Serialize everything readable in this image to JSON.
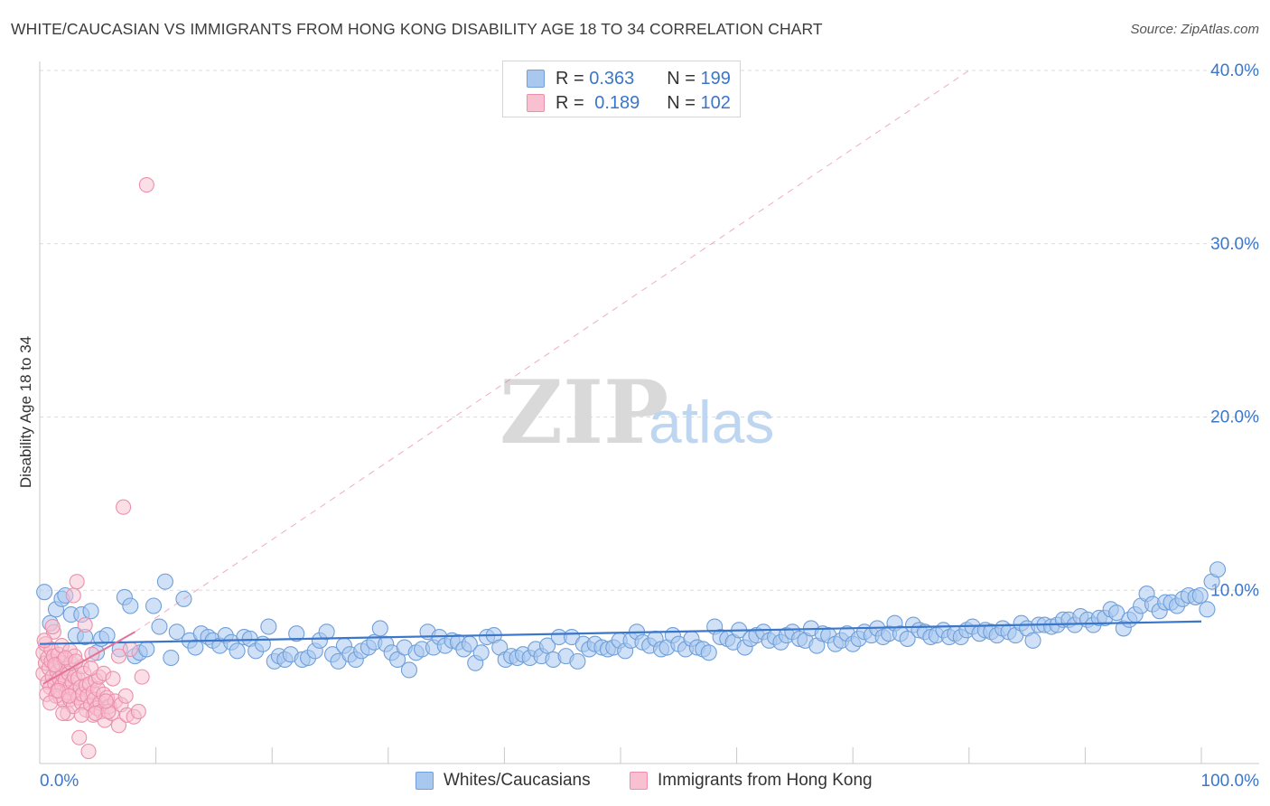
{
  "title": "WHITE/CAUCASIAN VS IMMIGRANTS FROM HONG KONG DISABILITY AGE 18 TO 34 CORRELATION CHART",
  "source": "Source: ZipAtlas.com",
  "watermark": {
    "zip": "ZIP",
    "atlas": "atlas"
  },
  "legend": {
    "rows": [
      {
        "r_label": "R = ",
        "r_value": "0.363",
        "n_label": "N = ",
        "n_value": "199",
        "color": "#a9c8f0",
        "border": "#6f9fd8"
      },
      {
        "r_label": "R = ",
        "r_value": "0.189",
        "n_label": "N = ",
        "n_value": "102",
        "color": "#f8c0d0",
        "border": "#ec8fab"
      }
    ]
  },
  "bottom_legend": [
    {
      "label": "Whites/Caucasians",
      "color": "#a9c8f0",
      "border": "#6f9fd8"
    },
    {
      "label": "Immigrants from Hong Kong",
      "color": "#f8c0d0",
      "border": "#ec8fab"
    }
  ],
  "chart_data": {
    "type": "scatter",
    "title": "WHITE/CAUCASIAN VS IMMIGRANTS FROM HONG KONG DISABILITY AGE 18 TO 34 CORRELATION CHART",
    "xlabel": "",
    "ylabel": "Disability Age 18 to 34",
    "xlim": [
      0,
      100
    ],
    "ylim": [
      0,
      40
    ],
    "x_tick_labels": [
      "0.0%",
      "100.0%"
    ],
    "y_ticks": [
      10,
      20,
      30,
      40
    ],
    "y_tick_labels": [
      "10.0%",
      "20.0%",
      "30.0%",
      "40.0%"
    ],
    "grid": "horizontal dashed",
    "legend_position": "top-center",
    "colors": {
      "blue": "#6f9fd8",
      "blue_fill": "#a9c8f0",
      "blue_line": "#3a76c9",
      "pink": "#ec8fab",
      "pink_fill": "#f8c0d0",
      "pink_line": "#e4739a"
    },
    "series": [
      {
        "name": "Whites/Caucasians",
        "r": 0.363,
        "n": 199,
        "trend": {
          "x": [
            0,
            100
          ],
          "y": [
            6.9,
            8.2
          ]
        },
        "points": [
          [
            0.4,
            9.9
          ],
          [
            0.9,
            8.1
          ],
          [
            1.4,
            8.9
          ],
          [
            1.9,
            9.5
          ],
          [
            2.2,
            9.7
          ],
          [
            2.7,
            8.6
          ],
          [
            3.1,
            7.4
          ],
          [
            3.6,
            8.6
          ],
          [
            3.9,
            7.3
          ],
          [
            4.4,
            8.8
          ],
          [
            4.9,
            6.4
          ],
          [
            5.3,
            7.2
          ],
          [
            5.8,
            7.4
          ],
          [
            6.9,
            6.6
          ],
          [
            7.3,
            9.6
          ],
          [
            7.8,
            9.1
          ],
          [
            8.2,
            6.2
          ],
          [
            8.6,
            6.4
          ],
          [
            9.2,
            6.6
          ],
          [
            9.8,
            9.1
          ],
          [
            10.3,
            7.9
          ],
          [
            10.8,
            10.5
          ],
          [
            11.3,
            6.1
          ],
          [
            11.8,
            7.6
          ],
          [
            12.4,
            9.5
          ],
          [
            12.9,
            7.1
          ],
          [
            13.4,
            6.7
          ],
          [
            13.9,
            7.5
          ],
          [
            14.5,
            7.3
          ],
          [
            14.9,
            7.1
          ],
          [
            15.5,
            6.8
          ],
          [
            16.0,
            7.4
          ],
          [
            16.5,
            7.0
          ],
          [
            17.0,
            6.5
          ],
          [
            17.6,
            7.3
          ],
          [
            18.1,
            7.2
          ],
          [
            18.6,
            6.5
          ],
          [
            19.2,
            6.9
          ],
          [
            19.7,
            7.9
          ],
          [
            20.2,
            5.9
          ],
          [
            20.6,
            6.2
          ],
          [
            21.1,
            6.0
          ],
          [
            21.6,
            6.3
          ],
          [
            22.1,
            7.5
          ],
          [
            22.6,
            6.0
          ],
          [
            23.1,
            6.1
          ],
          [
            23.7,
            6.5
          ],
          [
            24.1,
            7.1
          ],
          [
            24.7,
            7.6
          ],
          [
            25.2,
            6.3
          ],
          [
            25.7,
            5.9
          ],
          [
            26.2,
            6.8
          ],
          [
            26.7,
            6.3
          ],
          [
            27.2,
            6.0
          ],
          [
            27.7,
            6.5
          ],
          [
            28.3,
            6.7
          ],
          [
            28.8,
            7.0
          ],
          [
            29.3,
            7.8
          ],
          [
            29.8,
            6.9
          ],
          [
            30.3,
            6.4
          ],
          [
            30.8,
            6.0
          ],
          [
            31.4,
            6.7
          ],
          [
            31.8,
            5.4
          ],
          [
            32.4,
            6.4
          ],
          [
            32.9,
            6.6
          ],
          [
            33.4,
            7.6
          ],
          [
            33.9,
            6.7
          ],
          [
            34.4,
            7.3
          ],
          [
            34.9,
            6.8
          ],
          [
            35.5,
            7.1
          ],
          [
            36.0,
            7.0
          ],
          [
            36.5,
            6.6
          ],
          [
            37.0,
            6.9
          ],
          [
            37.5,
            5.8
          ],
          [
            38.0,
            6.4
          ],
          [
            38.5,
            7.3
          ],
          [
            39.1,
            7.4
          ],
          [
            39.6,
            6.7
          ],
          [
            40.1,
            6.0
          ],
          [
            40.6,
            6.2
          ],
          [
            41.1,
            6.1
          ],
          [
            41.6,
            6.3
          ],
          [
            42.2,
            6.1
          ],
          [
            42.7,
            6.6
          ],
          [
            43.2,
            6.2
          ],
          [
            43.7,
            6.8
          ],
          [
            44.2,
            6.0
          ],
          [
            44.7,
            7.3
          ],
          [
            45.3,
            6.2
          ],
          [
            45.8,
            7.3
          ],
          [
            46.3,
            5.9
          ],
          [
            46.8,
            6.9
          ],
          [
            47.3,
            6.6
          ],
          [
            47.8,
            6.9
          ],
          [
            48.4,
            6.7
          ],
          [
            48.9,
            6.6
          ],
          [
            49.4,
            6.7
          ],
          [
            49.9,
            7.1
          ],
          [
            50.4,
            6.5
          ],
          [
            50.9,
            7.1
          ],
          [
            51.4,
            7.6
          ],
          [
            51.9,
            7.0
          ],
          [
            52.5,
            6.8
          ],
          [
            53.0,
            7.2
          ],
          [
            53.5,
            6.6
          ],
          [
            54.0,
            6.7
          ],
          [
            54.5,
            7.4
          ],
          [
            55.0,
            6.9
          ],
          [
            55.6,
            6.6
          ],
          [
            56.1,
            7.2
          ],
          [
            56.6,
            6.7
          ],
          [
            57.1,
            6.6
          ],
          [
            57.6,
            6.4
          ],
          [
            58.1,
            7.9
          ],
          [
            58.6,
            7.3
          ],
          [
            59.2,
            7.2
          ],
          [
            59.7,
            7.0
          ],
          [
            60.2,
            7.7
          ],
          [
            60.7,
            6.7
          ],
          [
            61.2,
            7.2
          ],
          [
            61.7,
            7.4
          ],
          [
            62.3,
            7.6
          ],
          [
            62.8,
            7.1
          ],
          [
            63.3,
            7.3
          ],
          [
            63.8,
            7.0
          ],
          [
            64.3,
            7.4
          ],
          [
            64.8,
            7.6
          ],
          [
            65.4,
            7.2
          ],
          [
            65.9,
            7.1
          ],
          [
            66.4,
            7.8
          ],
          [
            66.9,
            6.8
          ],
          [
            67.4,
            7.5
          ],
          [
            67.9,
            7.4
          ],
          [
            68.5,
            6.9
          ],
          [
            69.0,
            7.1
          ],
          [
            69.5,
            7.5
          ],
          [
            70.0,
            6.9
          ],
          [
            70.5,
            7.2
          ],
          [
            71.0,
            7.6
          ],
          [
            71.6,
            7.4
          ],
          [
            72.1,
            7.8
          ],
          [
            72.6,
            7.3
          ],
          [
            73.1,
            7.5
          ],
          [
            73.6,
            8.1
          ],
          [
            74.1,
            7.5
          ],
          [
            74.7,
            7.2
          ],
          [
            75.2,
            8.0
          ],
          [
            75.7,
            7.7
          ],
          [
            76.2,
            7.6
          ],
          [
            76.7,
            7.3
          ],
          [
            77.2,
            7.4
          ],
          [
            77.8,
            7.7
          ],
          [
            78.3,
            7.3
          ],
          [
            78.8,
            7.5
          ],
          [
            79.3,
            7.3
          ],
          [
            79.8,
            7.7
          ],
          [
            80.3,
            7.9
          ],
          [
            80.9,
            7.5
          ],
          [
            81.4,
            7.7
          ],
          [
            81.9,
            7.6
          ],
          [
            82.4,
            7.4
          ],
          [
            82.9,
            7.8
          ],
          [
            83.4,
            7.6
          ],
          [
            84.0,
            7.4
          ],
          [
            84.5,
            8.1
          ],
          [
            85.0,
            7.8
          ],
          [
            85.5,
            7.1
          ],
          [
            86.0,
            8.0
          ],
          [
            86.5,
            8.0
          ],
          [
            87.1,
            7.9
          ],
          [
            87.6,
            8.0
          ],
          [
            88.1,
            8.3
          ],
          [
            88.6,
            8.3
          ],
          [
            89.1,
            8.0
          ],
          [
            89.6,
            8.5
          ],
          [
            90.2,
            8.3
          ],
          [
            90.7,
            8.0
          ],
          [
            91.2,
            8.4
          ],
          [
            91.7,
            8.4
          ],
          [
            92.2,
            8.9
          ],
          [
            92.7,
            8.7
          ],
          [
            93.3,
            7.8
          ],
          [
            93.8,
            8.3
          ],
          [
            94.3,
            8.6
          ],
          [
            94.8,
            9.1
          ],
          [
            95.3,
            9.8
          ],
          [
            95.8,
            9.2
          ],
          [
            96.4,
            8.8
          ],
          [
            96.9,
            9.3
          ],
          [
            97.4,
            9.3
          ],
          [
            97.9,
            9.1
          ],
          [
            98.4,
            9.5
          ],
          [
            98.9,
            9.7
          ],
          [
            99.5,
            9.6
          ],
          [
            99.9,
            9.7
          ],
          [
            100.5,
            8.9
          ],
          [
            100.9,
            10.5
          ],
          [
            101.4,
            11.2
          ]
        ]
      },
      {
        "name": "Immigrants from Hong Kong",
        "r": 0.189,
        "n": 102,
        "trend": {
          "x": [
            0.3,
            8.2
          ],
          "y": [
            4.6,
            7.6
          ]
        },
        "trend_extension": {
          "x": [
            8.2,
            80
          ],
          "y": [
            7.6,
            40
          ]
        },
        "points": [
          [
            0.3,
            6.4
          ],
          [
            0.3,
            5.2
          ],
          [
            0.5,
            6.9
          ],
          [
            0.5,
            5.8
          ],
          [
            0.7,
            4.7
          ],
          [
            0.7,
            6.1
          ],
          [
            0.8,
            5.5
          ],
          [
            0.9,
            4.4
          ],
          [
            1.0,
            6.6
          ],
          [
            1.0,
            5.9
          ],
          [
            1.1,
            5.0
          ],
          [
            1.2,
            7.6
          ],
          [
            1.2,
            6.2
          ],
          [
            1.3,
            4.6
          ],
          [
            1.4,
            5.6
          ],
          [
            1.5,
            4.2
          ],
          [
            1.5,
            5.3
          ],
          [
            1.6,
            6.3
          ],
          [
            1.7,
            4.9
          ],
          [
            1.8,
            3.8
          ],
          [
            1.8,
            5.8
          ],
          [
            1.9,
            4.5
          ],
          [
            2.0,
            5.1
          ],
          [
            2.1,
            6.0
          ],
          [
            2.1,
            3.6
          ],
          [
            2.2,
            4.8
          ],
          [
            2.3,
            5.5
          ],
          [
            2.3,
            4.1
          ],
          [
            2.4,
            2.9
          ],
          [
            2.5,
            5.2
          ],
          [
            2.6,
            4.4
          ],
          [
            2.6,
            3.7
          ],
          [
            2.7,
            5.8
          ],
          [
            2.8,
            4.7
          ],
          [
            2.9,
            3.3
          ],
          [
            2.9,
            9.7
          ],
          [
            3.0,
            5.0
          ],
          [
            3.1,
            4.2
          ],
          [
            3.2,
            10.5
          ],
          [
            3.3,
            3.8
          ],
          [
            3.3,
            4.9
          ],
          [
            3.4,
            1.5
          ],
          [
            3.5,
            4.4
          ],
          [
            3.6,
            5.6
          ],
          [
            3.6,
            3.5
          ],
          [
            3.7,
            4.0
          ],
          [
            3.8,
            5.2
          ],
          [
            3.9,
            8.0
          ],
          [
            4.0,
            4.5
          ],
          [
            4.0,
            3.1
          ],
          [
            4.1,
            3.9
          ],
          [
            4.2,
            0.7
          ],
          [
            4.3,
            4.6
          ],
          [
            4.4,
            3.4
          ],
          [
            4.5,
            6.3
          ],
          [
            4.6,
            4.1
          ],
          [
            4.6,
            2.8
          ],
          [
            4.7,
            3.7
          ],
          [
            4.8,
            4.8
          ],
          [
            4.9,
            3.2
          ],
          [
            5.0,
            4.3
          ],
          [
            5.1,
            5.0
          ],
          [
            5.2,
            3.5
          ],
          [
            5.3,
            3.0
          ],
          [
            5.5,
            4.0
          ],
          [
            5.6,
            2.5
          ],
          [
            5.8,
            3.8
          ],
          [
            6.0,
            3.3
          ],
          [
            6.2,
            2.9
          ],
          [
            6.5,
            3.6
          ],
          [
            6.8,
            2.2
          ],
          [
            7.0,
            3.4
          ],
          [
            7.2,
            14.8
          ],
          [
            7.5,
            2.8
          ],
          [
            7.8,
            6.6
          ],
          [
            8.1,
            2.7
          ],
          [
            8.5,
            3.0
          ],
          [
            8.8,
            5.0
          ],
          [
            9.2,
            33.4
          ],
          [
            1.1,
            7.9
          ],
          [
            1.9,
            6.8
          ],
          [
            2.6,
            6.5
          ],
          [
            0.6,
            4.0
          ],
          [
            1.4,
            3.9
          ],
          [
            3.0,
            6.2
          ],
          [
            4.4,
            5.5
          ],
          [
            5.5,
            5.2
          ],
          [
            6.3,
            4.9
          ],
          [
            2.0,
            2.9
          ],
          [
            3.6,
            2.8
          ],
          [
            0.9,
            3.5
          ],
          [
            1.6,
            4.2
          ],
          [
            2.5,
            3.9
          ],
          [
            4.8,
            2.9
          ],
          [
            5.9,
            3.0
          ],
          [
            0.4,
            7.1
          ],
          [
            1.3,
            5.7
          ],
          [
            2.2,
            6.1
          ],
          [
            3.1,
            5.9
          ],
          [
            6.8,
            6.2
          ],
          [
            7.4,
            3.9
          ],
          [
            5.7,
            3.6
          ]
        ]
      }
    ]
  }
}
